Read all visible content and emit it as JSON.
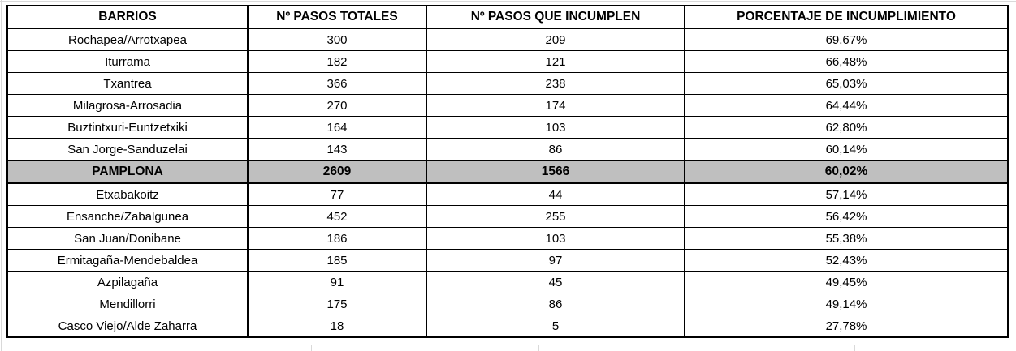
{
  "table": {
    "columns": [
      "BARRIOS",
      "Nº PASOS TOTALES",
      "Nº PASOS QUE INCUMPLEN",
      "PORCENTAJE DE INCUMPLIMIENTO"
    ],
    "rows": [
      {
        "barrio": "Rochapea/Arrotxapea",
        "pasos_totales": "300",
        "pasos_incumplen": "209",
        "porcentaje": "69,67%",
        "highlight": false
      },
      {
        "barrio": "Iturrama",
        "pasos_totales": "182",
        "pasos_incumplen": "121",
        "porcentaje": "66,48%",
        "highlight": false
      },
      {
        "barrio": "Txantrea",
        "pasos_totales": "366",
        "pasos_incumplen": "238",
        "porcentaje": "65,03%",
        "highlight": false
      },
      {
        "barrio": "Milagrosa-Arrosadia",
        "pasos_totales": "270",
        "pasos_incumplen": "174",
        "porcentaje": "64,44%",
        "highlight": false
      },
      {
        "barrio": "Buztintxuri-Euntzetxiki",
        "pasos_totales": "164",
        "pasos_incumplen": "103",
        "porcentaje": "62,80%",
        "highlight": false
      },
      {
        "barrio": "San Jorge-Sanduzelai",
        "pasos_totales": "143",
        "pasos_incumplen": "86",
        "porcentaje": "60,14%",
        "highlight": false
      },
      {
        "barrio": "PAMPLONA",
        "pasos_totales": "2609",
        "pasos_incumplen": "1566",
        "porcentaje": "60,02%",
        "highlight": true
      },
      {
        "barrio": "Etxabakoitz",
        "pasos_totales": "77",
        "pasos_incumplen": "44",
        "porcentaje": "57,14%",
        "highlight": false
      },
      {
        "barrio": "Ensanche/Zabalgunea",
        "pasos_totales": "452",
        "pasos_incumplen": "255",
        "porcentaje": "56,42%",
        "highlight": false
      },
      {
        "barrio": "San Juan/Donibane",
        "pasos_totales": "186",
        "pasos_incumplen": "103",
        "porcentaje": "55,38%",
        "highlight": false
      },
      {
        "barrio": "Ermitagaña-Mendebaldea",
        "pasos_totales": "185",
        "pasos_incumplen": "97",
        "porcentaje": "52,43%",
        "highlight": false
      },
      {
        "barrio": "Azpilagaña",
        "pasos_totales": "91",
        "pasos_incumplen": "45",
        "porcentaje": "49,45%",
        "highlight": false
      },
      {
        "barrio": "Mendillorri",
        "pasos_totales": "175",
        "pasos_incumplen": "86",
        "porcentaje": "49,14%",
        "highlight": false
      },
      {
        "barrio": "Casco Viejo/Alde Zaharra",
        "pasos_totales": "18",
        "pasos_incumplen": "5",
        "porcentaje": "27,78%",
        "highlight": false
      }
    ],
    "summary_row_label": "PAMPLONA"
  },
  "colors": {
    "highlight_bg": "#BFBFBF",
    "border": "#000000",
    "gridline": "#D9D9D9",
    "text": "#000000"
  },
  "chart_data": {
    "type": "table",
    "title": "",
    "columns": [
      "BARRIOS",
      "Nº PASOS TOTALES",
      "Nº PASOS QUE INCUMPLEN",
      "PORCENTAJE DE INCUMPLIMIENTO"
    ],
    "rows": [
      [
        "Rochapea/Arrotxapea",
        300,
        209,
        "69,67%"
      ],
      [
        "Iturrama",
        182,
        121,
        "66,48%"
      ],
      [
        "Txantrea",
        366,
        238,
        "65,03%"
      ],
      [
        "Milagrosa-Arrosadia",
        270,
        174,
        "64,44%"
      ],
      [
        "Buztintxuri-Euntzetxiki",
        164,
        103,
        "62,80%"
      ],
      [
        "San Jorge-Sanduzelai",
        143,
        86,
        "60,14%"
      ],
      [
        "PAMPLONA",
        2609,
        1566,
        "60,02%"
      ],
      [
        "Etxabakoitz",
        77,
        44,
        "57,14%"
      ],
      [
        "Ensanche/Zabalgunea",
        452,
        255,
        "56,42%"
      ],
      [
        "San Juan/Donibane",
        186,
        103,
        "55,38%"
      ],
      [
        "Ermitagaña-Mendebaldea",
        185,
        97,
        "52,43%"
      ],
      [
        "Azpilagaña",
        91,
        45,
        "49,45%"
      ],
      [
        "Mendillorri",
        175,
        86,
        "49,14%"
      ],
      [
        "Casco Viejo/Alde Zaharra",
        18,
        5,
        "27,78%"
      ]
    ]
  }
}
